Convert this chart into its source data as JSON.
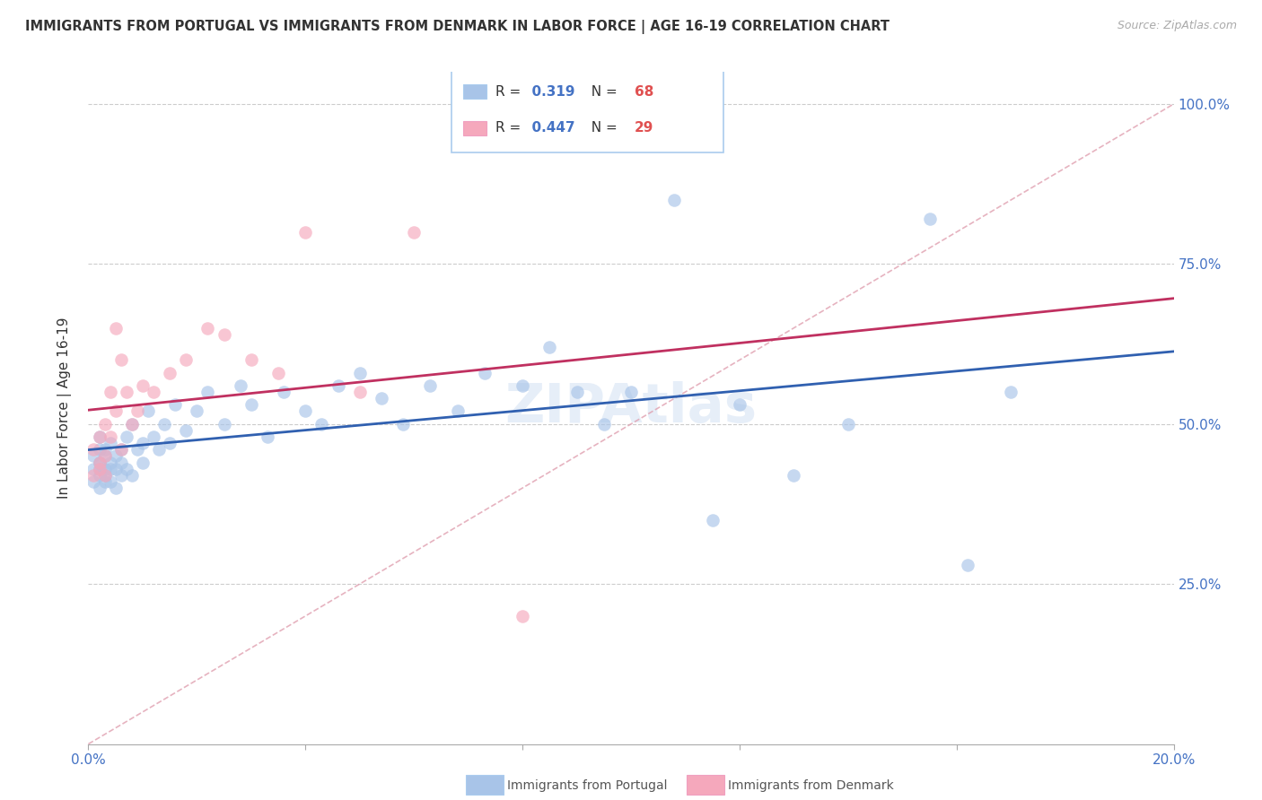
{
  "title": "IMMIGRANTS FROM PORTUGAL VS IMMIGRANTS FROM DENMARK IN LABOR FORCE | AGE 16-19 CORRELATION CHART",
  "source": "Source: ZipAtlas.com",
  "ylabel": "In Labor Force | Age 16-19",
  "xlim": [
    0.0,
    0.2
  ],
  "ylim": [
    0.0,
    1.05
  ],
  "R_portugal": 0.319,
  "N_portugal": 68,
  "R_denmark": 0.447,
  "N_denmark": 29,
  "color_portugal": "#a8c4e8",
  "color_denmark": "#f5a8bc",
  "color_line_portugal": "#3060b0",
  "color_line_denmark": "#c03060",
  "color_ref_line": "#e8a0b0",
  "watermark": "ZIPAtlas",
  "portugal_x": [
    0.001,
    0.001,
    0.001,
    0.002,
    0.002,
    0.002,
    0.002,
    0.002,
    0.002,
    0.002,
    0.003,
    0.003,
    0.003,
    0.003,
    0.003,
    0.004,
    0.004,
    0.004,
    0.004,
    0.005,
    0.005,
    0.005,
    0.006,
    0.006,
    0.006,
    0.007,
    0.007,
    0.008,
    0.008,
    0.009,
    0.01,
    0.01,
    0.011,
    0.012,
    0.013,
    0.014,
    0.015,
    0.016,
    0.018,
    0.02,
    0.022,
    0.025,
    0.028,
    0.03,
    0.033,
    0.036,
    0.04,
    0.043,
    0.046,
    0.05,
    0.054,
    0.058,
    0.063,
    0.068,
    0.073,
    0.08,
    0.085,
    0.09,
    0.095,
    0.1,
    0.108,
    0.115,
    0.12,
    0.13,
    0.14,
    0.155,
    0.162,
    0.17
  ],
  "portugal_y": [
    0.43,
    0.45,
    0.41,
    0.44,
    0.43,
    0.42,
    0.46,
    0.4,
    0.48,
    0.44,
    0.45,
    0.43,
    0.41,
    0.46,
    0.42,
    0.44,
    0.43,
    0.47,
    0.41,
    0.45,
    0.43,
    0.4,
    0.44,
    0.46,
    0.42,
    0.48,
    0.43,
    0.5,
    0.42,
    0.46,
    0.47,
    0.44,
    0.52,
    0.48,
    0.46,
    0.5,
    0.47,
    0.53,
    0.49,
    0.52,
    0.55,
    0.5,
    0.56,
    0.53,
    0.48,
    0.55,
    0.52,
    0.5,
    0.56,
    0.58,
    0.54,
    0.5,
    0.56,
    0.52,
    0.58,
    0.56,
    0.62,
    0.55,
    0.5,
    0.55,
    0.85,
    0.35,
    0.53,
    0.42,
    0.5,
    0.82,
    0.28,
    0.55
  ],
  "denmark_x": [
    0.001,
    0.001,
    0.002,
    0.002,
    0.002,
    0.003,
    0.003,
    0.003,
    0.004,
    0.004,
    0.005,
    0.005,
    0.006,
    0.006,
    0.007,
    0.008,
    0.009,
    0.01,
    0.012,
    0.015,
    0.018,
    0.022,
    0.025,
    0.03,
    0.035,
    0.04,
    0.05,
    0.06,
    0.08
  ],
  "denmark_y": [
    0.42,
    0.46,
    0.44,
    0.48,
    0.43,
    0.5,
    0.45,
    0.42,
    0.55,
    0.48,
    0.52,
    0.65,
    0.6,
    0.46,
    0.55,
    0.5,
    0.52,
    0.56,
    0.55,
    0.58,
    0.6,
    0.65,
    0.64,
    0.6,
    0.58,
    0.8,
    0.55,
    0.8,
    0.2
  ],
  "legend_R_color": "#4472c4",
  "legend_N_color": "#e05050",
  "legend_text_color": "#333333"
}
